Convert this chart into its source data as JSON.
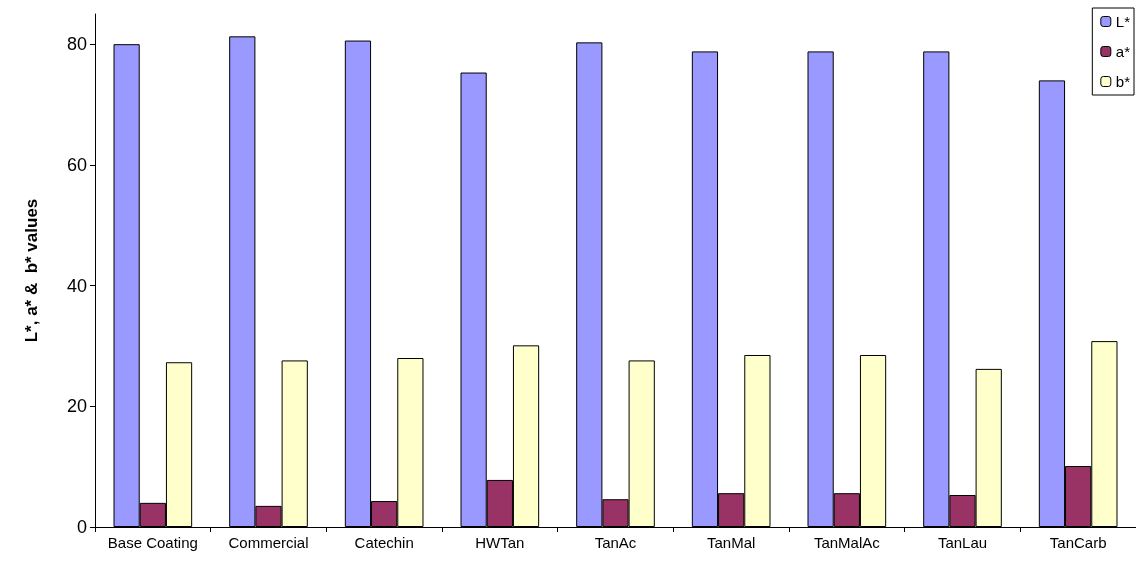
{
  "chart_data": {
    "type": "bar",
    "ylabel": "L*, a* &  b* values",
    "categories": [
      "Base Coating",
      "Commercial",
      "Catechin",
      "HWTan",
      "TanAc",
      "TanMal",
      "TanMalAc",
      "TanLau",
      "TanCarb"
    ],
    "series": [
      {
        "name": "L*",
        "color": "#9999ff",
        "values": [
          80.0,
          81.3,
          80.6,
          75.3,
          80.3,
          78.8,
          78.8,
          78.8,
          74.0
        ]
      },
      {
        "name": "a*",
        "color": "#993366",
        "values": [
          4.0,
          3.5,
          4.3,
          7.8,
          4.6,
          5.6,
          5.6,
          5.3,
          10.1
        ]
      },
      {
        "name": "b*",
        "color": "#ffffcc",
        "values": [
          27.3,
          27.6,
          28.0,
          30.1,
          27.6,
          28.5,
          28.5,
          26.2,
          30.8
        ]
      }
    ],
    "ylim": [
      0,
      85
    ],
    "yticks": [
      0,
      20,
      40,
      60,
      80
    ],
    "grid": false,
    "legend": "top right"
  }
}
